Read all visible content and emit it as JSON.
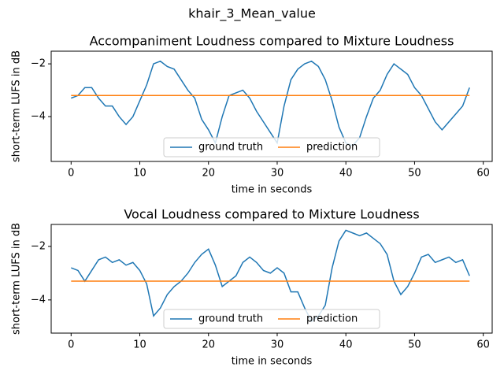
{
  "title": "khair_3_Mean_value",
  "chart_data": [
    {
      "type": "line",
      "title": "Accompaniment Loudness compared to Mixture Loudness",
      "xlabel": "time in seconds",
      "ylabel": "short-term LUFS in dB",
      "x": [
        0,
        1,
        2,
        3,
        4,
        5,
        6,
        7,
        8,
        9,
        10,
        11,
        12,
        13,
        14,
        15,
        16,
        17,
        18,
        19,
        20,
        21,
        22,
        23,
        24,
        25,
        26,
        27,
        28,
        29,
        30,
        31,
        32,
        33,
        34,
        35,
        36,
        37,
        38,
        39,
        40,
        41,
        42,
        43,
        44,
        45,
        46,
        47,
        48,
        49,
        50,
        51,
        52,
        53,
        54,
        55,
        56,
        57,
        58
      ],
      "series": [
        {
          "name": "ground truth",
          "color": "#1f77b4",
          "values": [
            -3.3,
            -3.2,
            -2.9,
            -2.9,
            -3.3,
            -3.6,
            -3.6,
            -4.0,
            -4.3,
            -4.0,
            -3.4,
            -2.8,
            -2.0,
            -1.9,
            -2.1,
            -2.2,
            -2.6,
            -3.0,
            -3.3,
            -4.1,
            -4.5,
            -5.0,
            -4.0,
            -3.2,
            -3.1,
            -3.0,
            -3.3,
            -3.8,
            -4.2,
            -4.6,
            -5.0,
            -3.6,
            -2.6,
            -2.2,
            -2.0,
            -1.9,
            -2.1,
            -2.6,
            -3.4,
            -4.4,
            -5.0,
            -5.1,
            -4.8,
            -4.0,
            -3.3,
            -3.0,
            -2.4,
            -2.0,
            -2.2,
            -2.4,
            -2.9,
            -3.2,
            -3.7,
            -4.2,
            -4.5,
            -4.2,
            -3.9,
            -3.6,
            -2.9
          ]
        },
        {
          "name": "prediction",
          "color": "#ff7f0e",
          "values": [
            -3.2,
            -3.2,
            -3.2,
            -3.2,
            -3.2,
            -3.2,
            -3.2,
            -3.2,
            -3.2,
            -3.2,
            -3.2,
            -3.2,
            -3.2,
            -3.2,
            -3.2,
            -3.2,
            -3.2,
            -3.2,
            -3.2,
            -3.2,
            -3.2,
            -3.2,
            -3.2,
            -3.2,
            -3.2,
            -3.2,
            -3.2,
            -3.2,
            -3.2,
            -3.2,
            -3.2,
            -3.2,
            -3.2,
            -3.2,
            -3.2,
            -3.2,
            -3.2,
            -3.2,
            -3.2,
            -3.2,
            -3.2,
            -3.2,
            -3.2,
            -3.2,
            -3.2,
            -3.2,
            -3.2,
            -3.2,
            -3.2,
            -3.2,
            -3.2,
            -3.2,
            -3.2,
            -3.2,
            -3.2,
            -3.2,
            -3.2,
            -3.2,
            -3.2
          ]
        }
      ],
      "xlim": [
        -2.9,
        61.3
      ],
      "xticks": [
        0,
        10,
        20,
        30,
        40,
        50,
        60
      ],
      "ylim": [
        -5.7,
        -1.52
      ],
      "yticks": [
        {
          "value": -4,
          "label": "−4"
        },
        {
          "value": -2,
          "label": "−2"
        }
      ],
      "legend": "lower center"
    },
    {
      "type": "line",
      "title": "Vocal Loudness compared to Mixture Loudness",
      "xlabel": "time in seconds",
      "ylabel": "short-term LUFS in dB",
      "x": [
        0,
        1,
        2,
        3,
        4,
        5,
        6,
        7,
        8,
        9,
        10,
        11,
        12,
        13,
        14,
        15,
        16,
        17,
        18,
        19,
        20,
        21,
        22,
        23,
        24,
        25,
        26,
        27,
        28,
        29,
        30,
        31,
        32,
        33,
        34,
        35,
        36,
        37,
        38,
        39,
        40,
        41,
        42,
        43,
        44,
        45,
        46,
        47,
        48,
        49,
        50,
        51,
        52,
        53,
        54,
        55,
        56,
        57,
        58
      ],
      "series": [
        {
          "name": "ground truth",
          "color": "#1f77b4",
          "values": [
            -2.8,
            -2.9,
            -3.3,
            -2.9,
            -2.5,
            -2.4,
            -2.6,
            -2.5,
            -2.7,
            -2.6,
            -2.9,
            -3.4,
            -4.6,
            -4.3,
            -3.8,
            -3.5,
            -3.3,
            -3.0,
            -2.6,
            -2.3,
            -2.1,
            -2.7,
            -3.5,
            -3.3,
            -3.1,
            -2.6,
            -2.4,
            -2.6,
            -2.9,
            -3.0,
            -2.8,
            -3.0,
            -3.7,
            -3.7,
            -4.3,
            -4.8,
            -4.6,
            -4.2,
            -2.8,
            -1.8,
            -1.4,
            -1.5,
            -1.6,
            -1.5,
            -1.7,
            -1.9,
            -2.3,
            -3.3,
            -3.8,
            -3.5,
            -3.0,
            -2.4,
            -2.3,
            -2.6,
            -2.5,
            -2.4,
            -2.6,
            -2.5,
            -3.1
          ]
        },
        {
          "name": "prediction",
          "color": "#ff7f0e",
          "values": [
            -3.3,
            -3.3,
            -3.3,
            -3.3,
            -3.3,
            -3.3,
            -3.3,
            -3.3,
            -3.3,
            -3.3,
            -3.3,
            -3.3,
            -3.3,
            -3.3,
            -3.3,
            -3.3,
            -3.3,
            -3.3,
            -3.3,
            -3.3,
            -3.3,
            -3.3,
            -3.3,
            -3.3,
            -3.3,
            -3.3,
            -3.3,
            -3.3,
            -3.3,
            -3.3,
            -3.3,
            -3.3,
            -3.3,
            -3.3,
            -3.3,
            -3.3,
            -3.3,
            -3.3,
            -3.3,
            -3.3,
            -3.3,
            -3.3,
            -3.3,
            -3.3,
            -3.3,
            -3.3,
            -3.3,
            -3.3,
            -3.3,
            -3.3,
            -3.3,
            -3.3,
            -3.3,
            -3.3,
            -3.3,
            -3.3,
            -3.3,
            -3.3,
            -3.3
          ]
        }
      ],
      "xlim": [
        -2.9,
        61.3
      ],
      "xticks": [
        0,
        10,
        20,
        30,
        40,
        50,
        60
      ],
      "ylim": [
        -5.24,
        -1.18
      ],
      "yticks": [
        {
          "value": -4,
          "label": "−4"
        },
        {
          "value": -2,
          "label": "−2"
        }
      ],
      "legend": "lower center"
    }
  ]
}
